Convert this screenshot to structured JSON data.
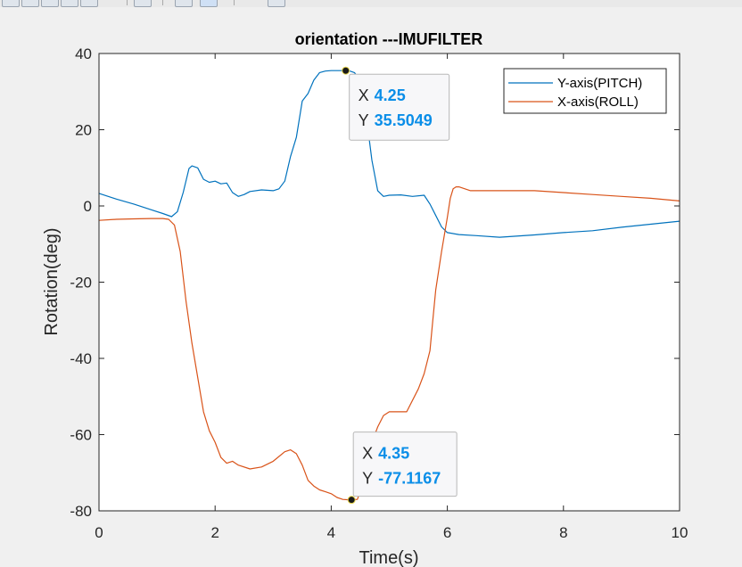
{
  "window": {
    "toolbar_icons": [
      "save-icon",
      "print-icon",
      "zoom-icon",
      "pan-icon",
      "datatip-icon",
      "rotate-icon"
    ]
  },
  "chart_data": {
    "type": "line",
    "title": "orientation ---IMUFILTER",
    "xlabel": "Time(s)",
    "ylabel": "Rotation(deg)",
    "xlim": [
      0,
      10
    ],
    "ylim": [
      -80,
      40
    ],
    "xticks": [
      0,
      2,
      4,
      6,
      8,
      10
    ],
    "yticks": [
      -80,
      -60,
      -40,
      -20,
      0,
      20,
      40
    ],
    "grid": false,
    "legend_location": "top-right",
    "series": [
      {
        "name": "Y-axis(PITCH)",
        "color": "#0072bd",
        "x": [
          0,
          0.3,
          0.6,
          0.9,
          1.1,
          1.25,
          1.35,
          1.45,
          1.55,
          1.6,
          1.7,
          1.8,
          1.9,
          2.0,
          2.1,
          2.2,
          2.3,
          2.4,
          2.5,
          2.6,
          2.8,
          3.0,
          3.1,
          3.2,
          3.3,
          3.4,
          3.5,
          3.6,
          3.7,
          3.8,
          3.9,
          4.0,
          4.1,
          4.2,
          4.25,
          4.3,
          4.4,
          4.5,
          4.55,
          4.6,
          4.7,
          4.8,
          4.9,
          5.0,
          5.2,
          5.4,
          5.6,
          5.7,
          5.8,
          5.9,
          6.0,
          6.2,
          6.5,
          6.9,
          7.5,
          8.0,
          8.5,
          9.0,
          9.5,
          10.0
        ],
        "y": [
          3.3,
          1.8,
          0.5,
          -1.0,
          -2.0,
          -2.8,
          -1.5,
          3.5,
          9.8,
          10.5,
          10.0,
          7.0,
          6.2,
          6.5,
          5.8,
          6.0,
          3.5,
          2.5,
          3.0,
          3.8,
          4.2,
          4.0,
          4.5,
          6.5,
          13.0,
          18.0,
          27.5,
          29.5,
          33.0,
          35.0,
          35.4,
          35.5,
          35.5,
          35.5,
          35.5,
          35.5,
          35.0,
          33.0,
          30.0,
          24.0,
          12.0,
          4.0,
          2.5,
          2.8,
          2.9,
          2.5,
          2.8,
          0.5,
          -2.5,
          -5.5,
          -7.0,
          -7.5,
          -7.8,
          -8.2,
          -7.6,
          -7.0,
          -6.5,
          -5.6,
          -4.8,
          -4.0
        ]
      },
      {
        "name": "X-axis(ROLL)",
        "color": "#d95319",
        "x": [
          0,
          0.3,
          0.6,
          0.9,
          1.1,
          1.2,
          1.3,
          1.4,
          1.5,
          1.6,
          1.7,
          1.8,
          1.9,
          2.0,
          2.1,
          2.2,
          2.3,
          2.4,
          2.6,
          2.8,
          3.0,
          3.2,
          3.3,
          3.4,
          3.5,
          3.6,
          3.7,
          3.8,
          3.9,
          4.0,
          4.1,
          4.2,
          4.3,
          4.35,
          4.45,
          4.5,
          4.6,
          4.7,
          4.8,
          4.9,
          5.0,
          5.1,
          5.2,
          5.3,
          5.5,
          5.6,
          5.7,
          5.75,
          5.8,
          5.9,
          6.0,
          6.05,
          6.1,
          6.15,
          6.2,
          6.4,
          6.8,
          7.5,
          8.0,
          8.5,
          9.0,
          9.5,
          10.0
        ],
        "y": [
          -3.8,
          -3.5,
          -3.4,
          -3.3,
          -3.3,
          -3.5,
          -5.0,
          -12.0,
          -25.0,
          -36.0,
          -45.0,
          -54.0,
          -59.0,
          -62.0,
          -66.0,
          -67.5,
          -67.0,
          -68.0,
          -69.0,
          -68.5,
          -67.0,
          -64.5,
          -64.0,
          -65.0,
          -68.0,
          -72.0,
          -73.5,
          -74.5,
          -75.0,
          -75.5,
          -76.5,
          -77.0,
          -77.1,
          -77.1,
          -77.0,
          -75.0,
          -70.0,
          -62.0,
          -58.0,
          -55.0,
          -54.0,
          -54.0,
          -54.0,
          -54.0,
          -48.0,
          -44.0,
          -38.0,
          -30.0,
          -22.0,
          -12.0,
          -3.0,
          2.0,
          4.5,
          5.0,
          5.0,
          4.0,
          4.0,
          4.0,
          3.5,
          3.0,
          2.5,
          2.0,
          1.3
        ]
      }
    ],
    "annotations": [
      {
        "x_label": "X",
        "x_value": "4.25",
        "y_label": "Y",
        "y_value": "35.5049",
        "point": [
          4.25,
          35.5049
        ]
      },
      {
        "x_label": "X",
        "x_value": "4.35",
        "y_label": "Y",
        "y_value": "-77.1167",
        "point": [
          4.35,
          -77.1167
        ]
      }
    ]
  }
}
